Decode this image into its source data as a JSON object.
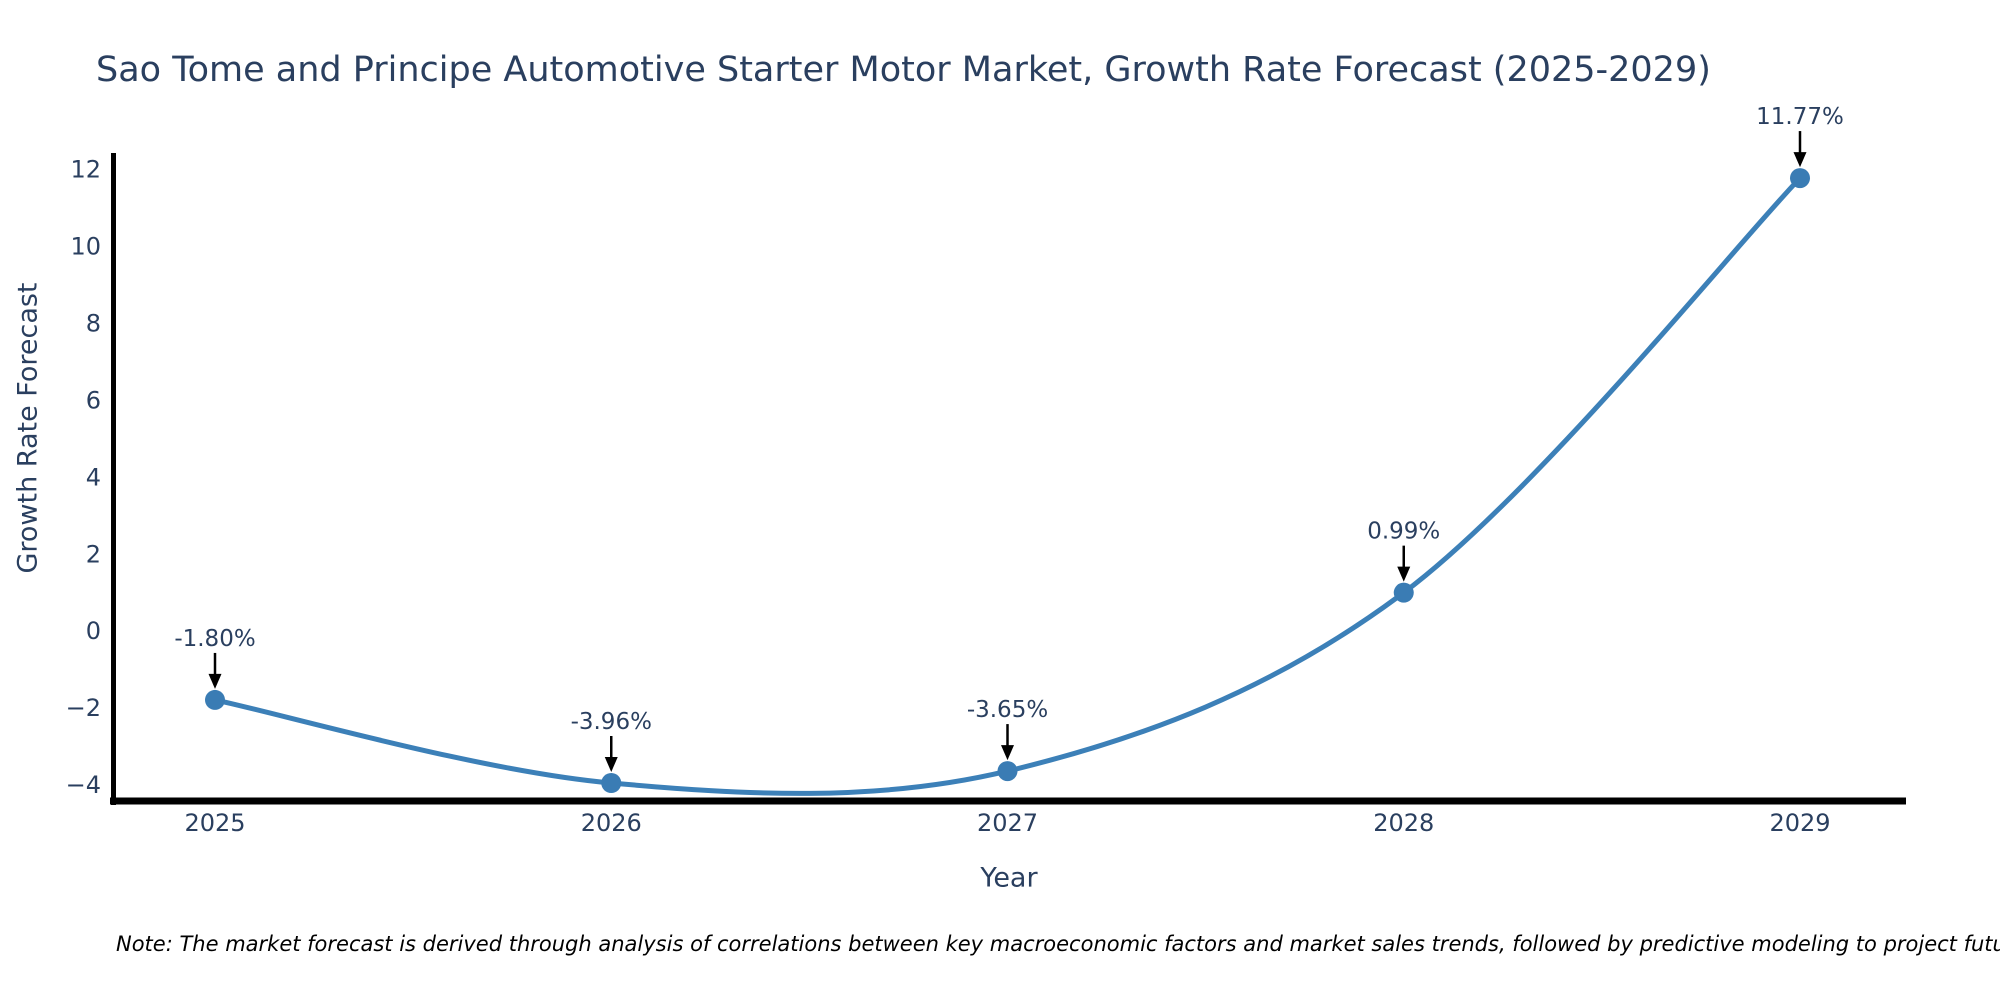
{
  "figure": {
    "title": "Sao Tome and Principe Automotive Starter Motor Market, Growth Rate Forecast (2025-2029)",
    "note": "Note: The market forecast is derived through analysis of correlations between key macroeconomic factors and market sales trends, followed by predictive modeling to project future sales"
  },
  "chart_data": {
    "type": "line",
    "title": "Sao Tome and Principe Automotive Starter Motor Market, Growth Rate Forecast (2025-2029)",
    "categories": [
      "2025",
      "2026",
      "2027",
      "2028",
      "2029"
    ],
    "values": [
      -1.8,
      -3.96,
      -3.65,
      0.99,
      11.77
    ],
    "point_labels": [
      "-1.80%",
      "-3.96%",
      "-3.65%",
      "0.99%",
      "11.77%"
    ],
    "xlabel": "Year",
    "ylabel": "Growth Rate Forecast",
    "yticks": [
      12,
      10,
      8,
      6,
      4,
      2,
      0,
      -2,
      -4
    ],
    "ytick_labels": [
      "12",
      "10",
      "8",
      "6",
      "4",
      "2",
      "0",
      "−2",
      "−4"
    ],
    "ylim": [
      -4.48,
      12.37
    ],
    "line_shape": "spline",
    "grid": false,
    "legend": "none",
    "markers": true,
    "annotations_arrow": true,
    "colors": {
      "line": "#3c80b8",
      "marker": "#3a7cb4",
      "axis": "#000000",
      "arrow": "#000000",
      "text": "#2a3f5f",
      "note_text": "#000000",
      "background": "#ffffff"
    }
  }
}
